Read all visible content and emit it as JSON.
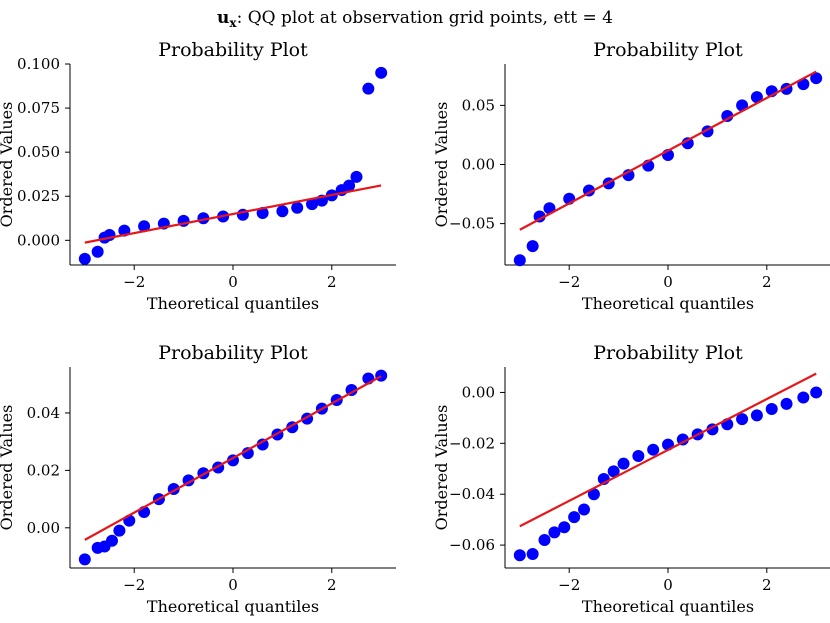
{
  "figure": {
    "suptitle_bold": "u",
    "suptitle_sub": "x",
    "suptitle_rest": ": QQ plot at observation grid points, ett = 4",
    "marker_color": "#0000ff",
    "fit_color": "#e8161b"
  },
  "chart_data": [
    {
      "type": "scatter",
      "title": "Probability Plot",
      "xlabel": "Theoretical quantiles",
      "ylabel": "Ordered Values",
      "xlim": [
        -3.3,
        3.3
      ],
      "ylim": [
        -0.014,
        0.1
      ],
      "xticks": [
        -2,
        0,
        2
      ],
      "xtick_labels": [
        "−2",
        "0",
        "2"
      ],
      "yticks": [
        0.0,
        0.025,
        0.05,
        0.075,
        0.1
      ],
      "ytick_labels": [
        "0.000",
        "0.025",
        "0.050",
        "0.075",
        "0.100"
      ],
      "fit_line": {
        "slope": 0.0054,
        "intercept": 0.0149
      },
      "points": {
        "x": [
          -3.0,
          -2.74,
          -2.6,
          -2.5,
          -2.2,
          -1.8,
          -1.4,
          -1.0,
          -0.6,
          -0.2,
          0.2,
          0.6,
          1.0,
          1.3,
          1.6,
          1.8,
          2.0,
          2.2,
          2.35,
          2.5,
          2.74,
          3.0
        ],
        "y": [
          -0.0105,
          -0.0065,
          0.0015,
          0.003,
          0.0055,
          0.008,
          0.0095,
          0.011,
          0.0125,
          0.0135,
          0.0145,
          0.0155,
          0.0165,
          0.0185,
          0.0205,
          0.0225,
          0.0255,
          0.0285,
          0.031,
          0.036,
          0.086,
          0.095
        ]
      }
    },
    {
      "type": "scatter",
      "title": "Probability Plot",
      "xlabel": "Theoretical quantiles",
      "ylabel": "Ordered Values",
      "xlim": [
        -3.3,
        3.3
      ],
      "ylim": [
        -0.085,
        0.085
      ],
      "xticks": [
        -2,
        0,
        2
      ],
      "xtick_labels": [
        "−2",
        "0",
        "2"
      ],
      "yticks": [
        -0.05,
        0.0,
        0.05
      ],
      "ytick_labels": [
        "−0.05",
        "0.00",
        "0.05"
      ],
      "fit_line": {
        "slope": 0.0223,
        "intercept": 0.0117
      },
      "points": {
        "x": [
          -3.0,
          -2.74,
          -2.6,
          -2.4,
          -2.0,
          -1.6,
          -1.2,
          -0.8,
          -0.4,
          0.0,
          0.4,
          0.8,
          1.2,
          1.5,
          1.8,
          2.1,
          2.4,
          2.74,
          3.0
        ],
        "y": [
          -0.081,
          -0.069,
          -0.044,
          -0.037,
          -0.029,
          -0.022,
          -0.016,
          -0.009,
          -0.001,
          0.008,
          0.018,
          0.028,
          0.041,
          0.05,
          0.057,
          0.062,
          0.064,
          0.068,
          0.073
        ]
      }
    },
    {
      "type": "scatter",
      "title": "Probability Plot",
      "xlabel": "Theoretical quantiles",
      "ylabel": "Ordered Values",
      "xlim": [
        -3.3,
        3.3
      ],
      "ylim": [
        -0.014,
        0.056
      ],
      "xticks": [
        -2,
        0,
        2
      ],
      "xtick_labels": [
        "−2",
        "0",
        "2"
      ],
      "yticks": [
        0.0,
        0.02,
        0.04
      ],
      "ytick_labels": [
        "0.00",
        "0.02",
        "0.04"
      ],
      "fit_line": {
        "slope": 0.0095,
        "intercept": 0.0243
      },
      "points": {
        "x": [
          -3.0,
          -2.74,
          -2.6,
          -2.45,
          -2.3,
          -2.1,
          -1.8,
          -1.5,
          -1.2,
          -0.9,
          -0.6,
          -0.3,
          0.0,
          0.3,
          0.6,
          0.9,
          1.2,
          1.5,
          1.8,
          2.1,
          2.4,
          2.74,
          3.0
        ],
        "y": [
          -0.011,
          -0.007,
          -0.0065,
          -0.0045,
          -0.001,
          0.0025,
          0.0055,
          0.01,
          0.0135,
          0.0165,
          0.019,
          0.021,
          0.0235,
          0.026,
          0.029,
          0.0325,
          0.035,
          0.038,
          0.0415,
          0.0445,
          0.048,
          0.052,
          0.053
        ]
      }
    },
    {
      "type": "scatter",
      "title": "Probability Plot",
      "xlabel": "Theoretical quantiles",
      "ylabel": "Ordered Values",
      "xlim": [
        -3.3,
        3.3
      ],
      "ylim": [
        -0.069,
        0.01
      ],
      "xticks": [
        -2,
        0,
        2
      ],
      "xtick_labels": [
        "−2",
        "0",
        "2"
      ],
      "yticks": [
        -0.06,
        -0.04,
        -0.02,
        0.0
      ],
      "ytick_labels": [
        "−0.06",
        "−0.04",
        "−0.02",
        "0.00"
      ],
      "fit_line": {
        "slope": 0.01,
        "intercept": -0.0226
      },
      "points": {
        "x": [
          -3.0,
          -2.74,
          -2.5,
          -2.3,
          -2.1,
          -1.9,
          -1.7,
          -1.5,
          -1.3,
          -1.1,
          -0.9,
          -0.6,
          -0.3,
          0.0,
          0.3,
          0.6,
          0.9,
          1.2,
          1.5,
          1.8,
          2.1,
          2.4,
          2.74,
          3.0
        ],
        "y": [
          -0.064,
          -0.0635,
          -0.058,
          -0.055,
          -0.053,
          -0.049,
          -0.046,
          -0.04,
          -0.034,
          -0.031,
          -0.028,
          -0.025,
          -0.0225,
          -0.0205,
          -0.0185,
          -0.0165,
          -0.0145,
          -0.0125,
          -0.0105,
          -0.009,
          -0.0065,
          -0.0045,
          -0.002,
          0.0
        ]
      }
    }
  ]
}
